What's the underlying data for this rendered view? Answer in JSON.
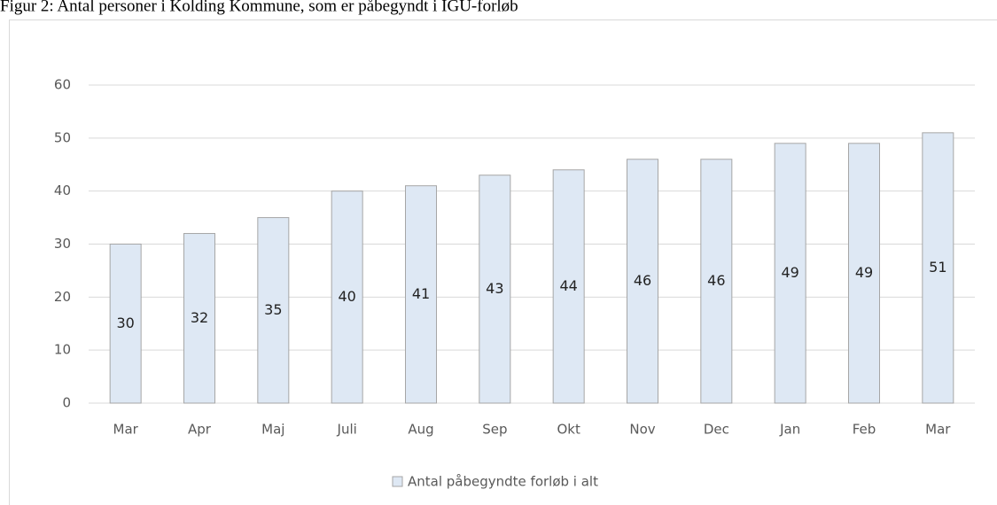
{
  "chart_data": {
    "type": "bar",
    "title": "Figur 2: Antal personer i Kolding Kommune, som er påbegyndt i IGU-forløb",
    "categories": [
      "Mar",
      "Apr",
      "Maj",
      "Juli",
      "Aug",
      "Sep",
      "Okt",
      "Nov",
      "Dec",
      "Jan",
      "Feb",
      "Mar"
    ],
    "series": [
      {
        "name": "Antal påbegyndte forløb i alt",
        "color": "#dee8f4",
        "values": [
          30,
          32,
          35,
          40,
          41,
          43,
          44,
          46,
          46,
          49,
          49,
          51
        ]
      }
    ],
    "ylim": [
      0,
      60
    ],
    "yticks": [
      0,
      10,
      20,
      30,
      40,
      50,
      60
    ],
    "grid": true,
    "legend": "bottom"
  }
}
